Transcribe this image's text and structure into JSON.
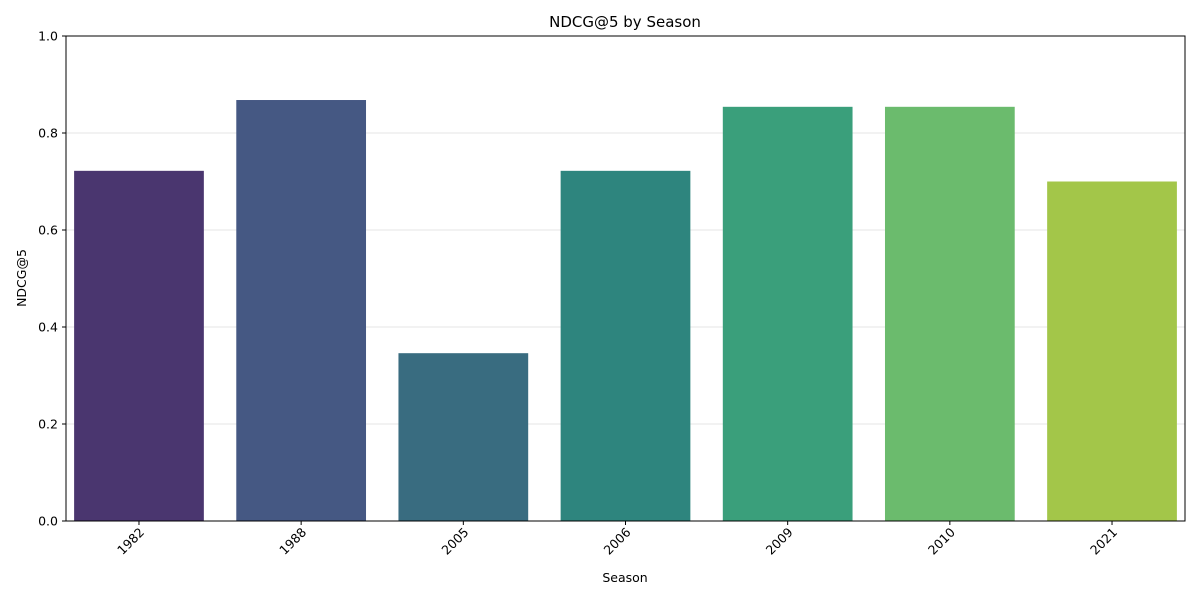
{
  "chart_data": {
    "type": "bar",
    "title": "NDCG@5 by Season",
    "xlabel": "Season",
    "ylabel": "NDCG@5",
    "categories": [
      "1982",
      "1988",
      "2005",
      "2006",
      "2009",
      "2010",
      "2021"
    ],
    "values": [
      0.722,
      0.868,
      0.346,
      0.722,
      0.854,
      0.854,
      0.7
    ],
    "colors": [
      "#4a366f",
      "#455883",
      "#396c80",
      "#2e857e",
      "#3a9f7b",
      "#6bbb6d",
      "#a3c649"
    ],
    "ylim": [
      0,
      1.0
    ],
    "yticks": [
      "0.0",
      "0.2",
      "0.4",
      "0.6",
      "0.8",
      "1.0"
    ],
    "grid": "y",
    "legend": "none"
  }
}
